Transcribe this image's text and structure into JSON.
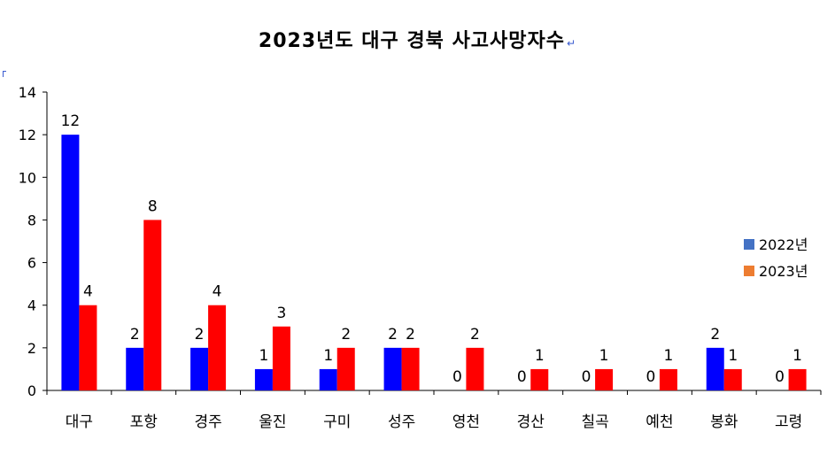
{
  "chart_data": {
    "type": "bar",
    "title": "2023년도 대구 경북 사고사망자수",
    "title_mark": "↵",
    "categories": [
      "대구",
      "포항",
      "경주",
      "울진",
      "구미",
      "성주",
      "영천",
      "경산",
      "칠곡",
      "예천",
      "봉화",
      "고령"
    ],
    "series": [
      {
        "name": "2022년",
        "color": "#0000ff",
        "legend_color": "#4472c4",
        "values": [
          12,
          2,
          2,
          1,
          1,
          2,
          0,
          0,
          0,
          0,
          2,
          0
        ]
      },
      {
        "name": "2023년",
        "color": "#ff0000",
        "legend_color": "#ed7d31",
        "values": [
          4,
          8,
          4,
          3,
          2,
          2,
          2,
          1,
          1,
          1,
          1,
          1
        ]
      }
    ],
    "ylim": [
      0,
      14
    ],
    "yticks": [
      0,
      2,
      4,
      6,
      8,
      10,
      12,
      14
    ],
    "xlabel": "",
    "ylabel": "",
    "grid": false,
    "legend_position": "right",
    "data_labels": true
  }
}
